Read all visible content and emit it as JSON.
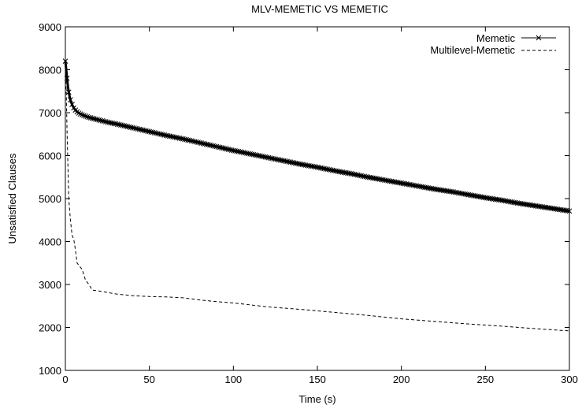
{
  "chart_data": {
    "type": "line",
    "title": "MLV-MEMETIC VS MEMETIC",
    "xlabel": "Time (s)",
    "ylabel": "Unsatisfied Clauses",
    "xlim": [
      0,
      300
    ],
    "ylim": [
      1000,
      9000
    ],
    "xticks": [
      0,
      50,
      100,
      150,
      200,
      250,
      300
    ],
    "yticks": [
      1000,
      2000,
      3000,
      4000,
      5000,
      6000,
      7000,
      8000,
      9000
    ],
    "grid": false,
    "legend_position": "top-right",
    "series": [
      {
        "name": "Memetic",
        "style": "solid-x-markers",
        "color": "#000000",
        "x": [
          0,
          0.5,
          1,
          1.5,
          2,
          2.5,
          3,
          3.5,
          4,
          4.5,
          5,
          6,
          7,
          8,
          9,
          10,
          12,
          14,
          16,
          18,
          20,
          25,
          30,
          40,
          50,
          60,
          70,
          80,
          90,
          100,
          110,
          120,
          130,
          140,
          150,
          160,
          170,
          180,
          190,
          200,
          210,
          220,
          230,
          240,
          250,
          260,
          270,
          280,
          290,
          300
        ],
        "y": [
          8200,
          8000,
          7800,
          7620,
          7480,
          7380,
          7300,
          7240,
          7190,
          7150,
          7110,
          7060,
          7020,
          6990,
          6970,
          6950,
          6920,
          6890,
          6870,
          6850,
          6830,
          6780,
          6740,
          6650,
          6560,
          6470,
          6390,
          6300,
          6210,
          6120,
          6040,
          5960,
          5880,
          5800,
          5730,
          5650,
          5580,
          5500,
          5430,
          5360,
          5290,
          5220,
          5160,
          5090,
          5020,
          4960,
          4890,
          4830,
          4770,
          4710
        ]
      },
      {
        "name": "Multilevel-Memetic",
        "style": "dashed",
        "color": "#000000",
        "x": [
          0,
          0.5,
          1,
          1.5,
          2,
          3,
          4,
          5,
          6,
          7,
          8,
          10,
          12,
          14,
          16,
          20,
          30,
          40,
          50,
          60,
          70,
          80,
          90,
          100,
          120,
          140,
          160,
          180,
          200,
          220,
          240,
          260,
          280,
          300
        ],
        "y": [
          8000,
          7500,
          6600,
          5800,
          5000,
          4500,
          4150,
          4050,
          3800,
          3500,
          3450,
          3350,
          3100,
          3000,
          2870,
          2850,
          2780,
          2740,
          2720,
          2710,
          2690,
          2640,
          2600,
          2570,
          2480,
          2420,
          2350,
          2280,
          2200,
          2140,
          2080,
          2030,
          1970,
          1920
        ]
      }
    ]
  }
}
